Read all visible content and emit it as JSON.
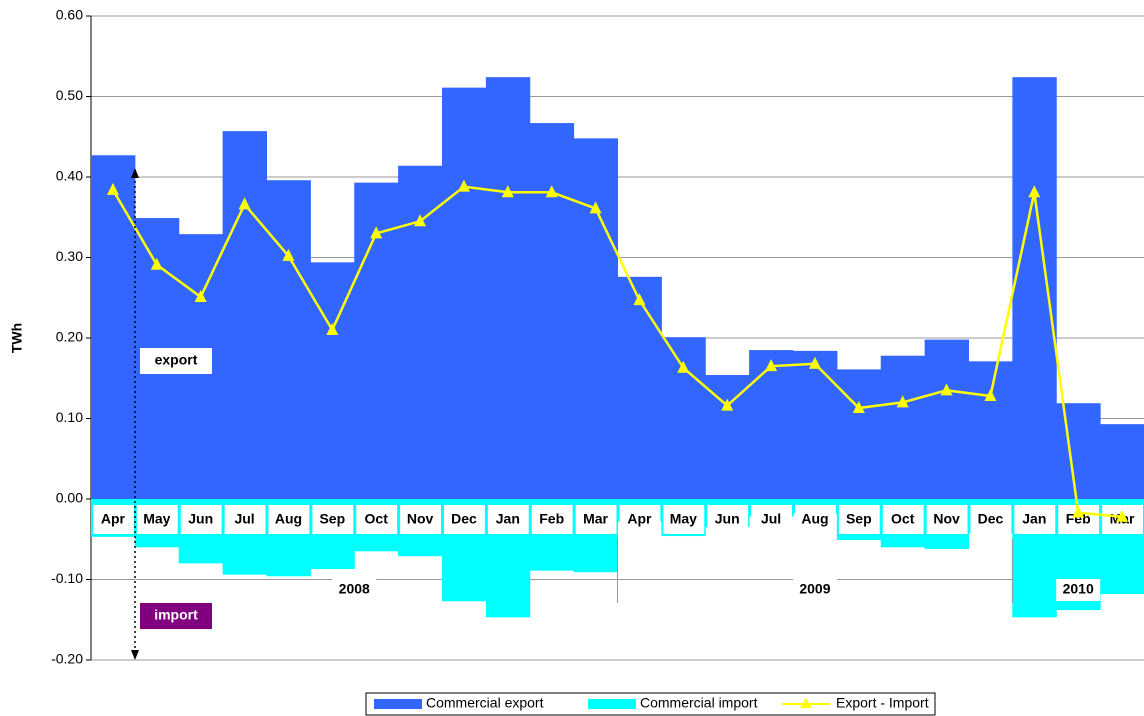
{
  "chart_data": {
    "type": "bar_line",
    "y_label": "TWh",
    "categories": [
      "Apr",
      "May",
      "Jun",
      "Jul",
      "Aug",
      "Sep",
      "Oct",
      "Nov",
      "Dec",
      "Jan",
      "Feb",
      "Mar",
      "Apr",
      "May",
      "Jun",
      "Jul",
      "Aug",
      "Sep",
      "Oct",
      "Nov",
      "Dec",
      "Jan",
      "Feb",
      "Mar"
    ],
    "groups": [
      {
        "label": "2008",
        "size": 12
      },
      {
        "label": "2009",
        "size": 9
      },
      {
        "label": "2010",
        "size": 3
      }
    ],
    "series": [
      {
        "name": "Commercial export",
        "type": "bar",
        "color": "#3366ff",
        "values": [
          0.427,
          0.349,
          0.329,
          0.457,
          0.396,
          0.294,
          0.393,
          0.414,
          0.511,
          0.524,
          0.467,
          0.448,
          0.276,
          0.201,
          0.154,
          0.185,
          0.184,
          0.161,
          0.178,
          0.198,
          0.171,
          0.524,
          0.119,
          0.093
        ]
      },
      {
        "name": "Commercial import",
        "type": "bar",
        "color": "#00ffff",
        "values": [
          -0.047,
          -0.06,
          -0.08,
          -0.094,
          -0.096,
          -0.087,
          -0.065,
          -0.071,
          -0.127,
          -0.147,
          -0.089,
          -0.091,
          -0.028,
          -0.046,
          -0.035,
          -0.022,
          -0.018,
          -0.051,
          -0.06,
          -0.062,
          -0.043,
          -0.147,
          -0.138,
          -0.118
        ]
      },
      {
        "name": "Export - Import",
        "type": "line",
        "color": "#ffff00",
        "values": [
          0.384,
          0.291,
          0.251,
          0.366,
          0.302,
          0.21,
          0.33,
          0.345,
          0.388,
          0.381,
          0.381,
          0.361,
          0.247,
          0.163,
          0.116,
          0.165,
          0.168,
          0.113,
          0.12,
          0.135,
          0.128,
          0.381,
          -0.017,
          -0.022
        ]
      }
    ],
    "annotations": [
      "export",
      "import"
    ],
    "ylim": [
      -0.2,
      0.6
    ],
    "yticks": [
      {
        "value": -0.2,
        "label": "-0.20"
      },
      {
        "value": -0.1,
        "label": "-0.10"
      },
      {
        "value": 0,
        "label": "0.00"
      },
      {
        "value": 0.1,
        "label": "0.10"
      },
      {
        "value": 0.2,
        "label": "0.20"
      },
      {
        "value": 0.3,
        "label": "0.30"
      },
      {
        "value": 0.4,
        "label": "0.40"
      },
      {
        "value": 0.5,
        "label": "0.50"
      },
      {
        "value": 0.6,
        "label": "0.60"
      }
    ],
    "grid": true
  }
}
